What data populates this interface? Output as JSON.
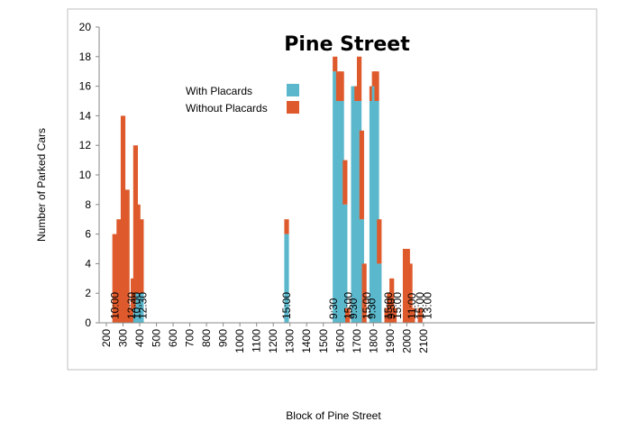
{
  "chart_data": {
    "type": "bar",
    "stacked": true,
    "title": "Pine Street",
    "xlabel": "Block of Pine Street",
    "ylabel": "Number of Parked Cars",
    "ylim": [
      0,
      20
    ],
    "yticks": [
      0,
      2,
      4,
      6,
      8,
      10,
      12,
      14,
      16,
      18,
      20
    ],
    "xlim": [
      200,
      2100
    ],
    "xticks": [
      200,
      300,
      400,
      500,
      600,
      700,
      800,
      900,
      1000,
      1100,
      1200,
      1300,
      1400,
      1500,
      1600,
      1700,
      1800,
      1900,
      2000,
      2100
    ],
    "grid": false,
    "legend": "upper-left",
    "colors": {
      "with": "#5bb8cc",
      "without": "#de5a2c"
    },
    "series": [
      {
        "name": "With Placards",
        "color": "#5bb8cc"
      },
      {
        "name": "Without Placards",
        "color": "#de5a2c"
      }
    ],
    "bars": [
      {
        "x": 250,
        "with": 0,
        "without": 6
      },
      {
        "x": 275,
        "with": 0,
        "without": 7
      },
      {
        "x": 300,
        "with": 0,
        "without": 14
      },
      {
        "x": 325,
        "with": 0,
        "without": 9
      },
      {
        "x": 350,
        "with": 0,
        "without": 1
      },
      {
        "x": 360,
        "with": 0,
        "without": 3
      },
      {
        "x": 375,
        "with": 1,
        "without": 11
      },
      {
        "x": 390,
        "with": 2,
        "without": 6
      },
      {
        "x": 410,
        "with": 2,
        "without": 5
      },
      {
        "x": 1280,
        "with": 6,
        "without": 1
      },
      {
        "x": 1570,
        "with": 17,
        "without": 1
      },
      {
        "x": 1590,
        "with": 15,
        "without": 2
      },
      {
        "x": 1610,
        "with": 15,
        "without": 2
      },
      {
        "x": 1630,
        "with": 8,
        "without": 3
      },
      {
        "x": 1645,
        "with": 0,
        "without": 1
      },
      {
        "x": 1680,
        "with": 16,
        "without": 0
      },
      {
        "x": 1700,
        "with": 15,
        "without": 1
      },
      {
        "x": 1715,
        "with": 15,
        "without": 3
      },
      {
        "x": 1730,
        "with": 7,
        "without": 6
      },
      {
        "x": 1745,
        "with": 0,
        "without": 4
      },
      {
        "x": 1790,
        "with": 15,
        "without": 1
      },
      {
        "x": 1805,
        "with": 16,
        "without": 1
      },
      {
        "x": 1820,
        "with": 15,
        "without": 2
      },
      {
        "x": 1835,
        "with": 4,
        "without": 3
      },
      {
        "x": 1880,
        "with": 0,
        "without": 1
      },
      {
        "x": 1895,
        "with": 0,
        "without": 2
      },
      {
        "x": 1910,
        "with": 0,
        "without": 3
      },
      {
        "x": 1925,
        "with": 0,
        "without": 1
      },
      {
        "x": 1990,
        "with": 0,
        "without": 5
      },
      {
        "x": 2005,
        "with": 0,
        "without": 5
      },
      {
        "x": 2020,
        "with": 0,
        "without": 4
      },
      {
        "x": 2035,
        "with": 0,
        "without": 1
      },
      {
        "x": 2080,
        "with": 0,
        "without": 1
      }
    ],
    "time_labels": [
      {
        "x": 250,
        "text": "10:00"
      },
      {
        "x": 350,
        "text": "12:30"
      },
      {
        "x": 380,
        "text": "10:00"
      },
      {
        "x": 420,
        "text": "12:30"
      },
      {
        "x": 1280,
        "text": "15:00"
      },
      {
        "x": 1560,
        "text": "9:30"
      },
      {
        "x": 1650,
        "text": "15:00"
      },
      {
        "x": 1680,
        "text": "9:30"
      },
      {
        "x": 1760,
        "text": "15:00"
      },
      {
        "x": 1790,
        "text": "9:30"
      },
      {
        "x": 1890,
        "text": "15:00"
      },
      {
        "x": 1905,
        "text": "9:30"
      },
      {
        "x": 1945,
        "text": "15:00"
      },
      {
        "x": 2030,
        "text": "11:00"
      },
      {
        "x": 2080,
        "text": "15:00"
      },
      {
        "x": 2125,
        "text": "13:00"
      }
    ]
  }
}
